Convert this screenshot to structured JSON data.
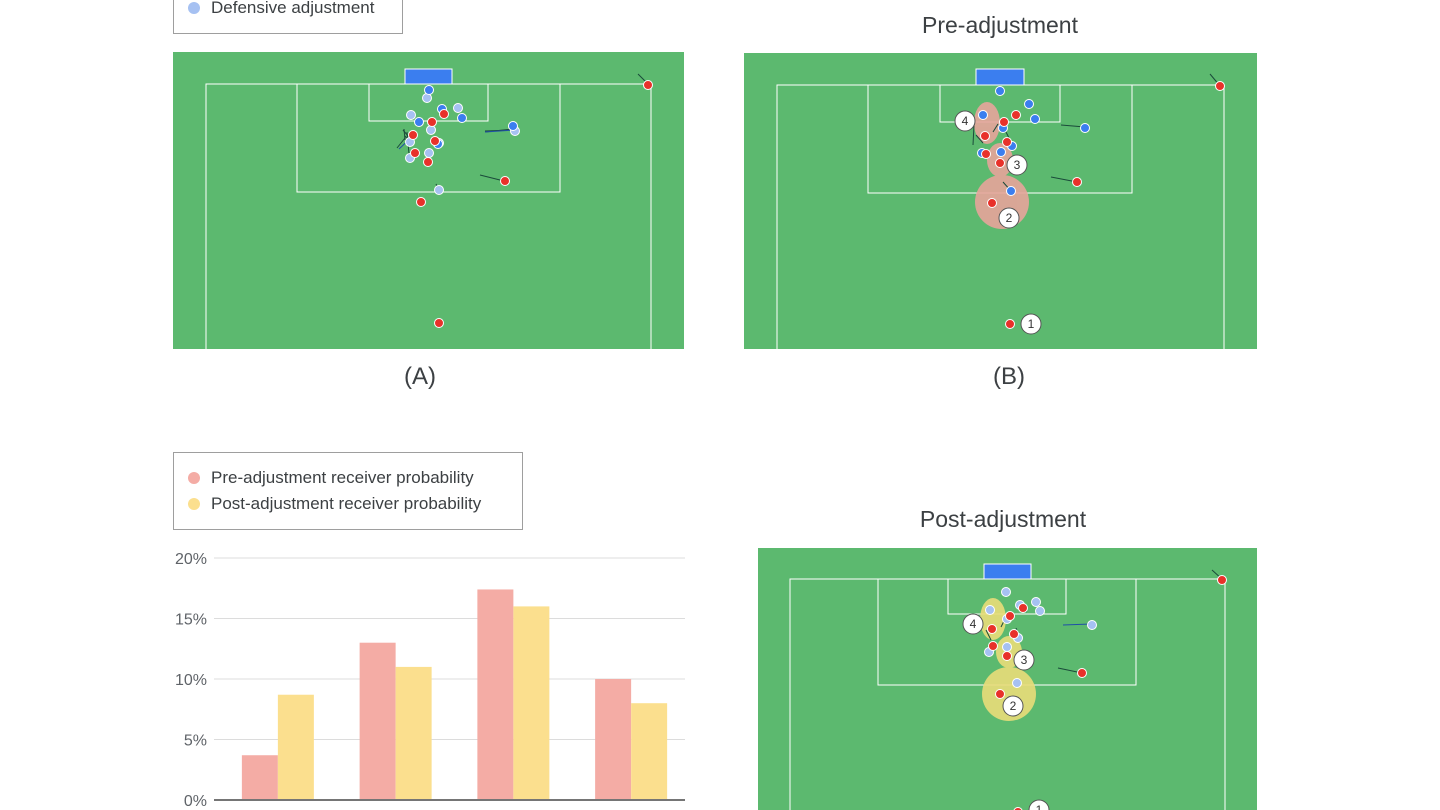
{
  "top_legend": {
    "items": [
      {
        "label": "Defensive adjustment",
        "color": "#a6c1f2"
      }
    ]
  },
  "panel_a": {
    "label": "(A)"
  },
  "panel_b": {
    "label": "(B)",
    "title": "Pre-adjustment"
  },
  "panel_c": {
    "title": "Post-adjustment"
  },
  "colors": {
    "pitch": "#5cb96f",
    "attacker": "#e8312a",
    "defender": "#3b7eef",
    "defender_adjusted": "#a6c1f2",
    "goal": "#3b7eef",
    "pre_highlight": "#e7a59b",
    "post_highlight": "#e9dd7a"
  },
  "bar_legend": {
    "items": [
      {
        "label": "Pre-adjustment receiver probability",
        "color": "#f4aca5"
      },
      {
        "label": "Post-adjustment receiver probability",
        "color": "#fbdf8e"
      }
    ]
  },
  "chart_data": {
    "type": "bar",
    "categories": [
      "",
      "",
      "",
      ""
    ],
    "series": [
      {
        "name": "Pre-adjustment receiver probability",
        "values": [
          3.7,
          13.0,
          17.4,
          10.0
        ],
        "color": "#f4aca5"
      },
      {
        "name": "Post-adjustment receiver probability",
        "values": [
          8.7,
          11.0,
          16.0,
          8.0
        ],
        "color": "#fbdf8e"
      }
    ],
    "y_ticks": [
      "0%",
      "5%",
      "10%",
      "15%",
      "20%"
    ],
    "ylim": [
      0,
      20
    ],
    "title": "",
    "xlabel": "",
    "ylabel": "",
    "grid": true,
    "legend_position": "top-left"
  },
  "receiver_badges": [
    "1",
    "2",
    "3",
    "4"
  ]
}
